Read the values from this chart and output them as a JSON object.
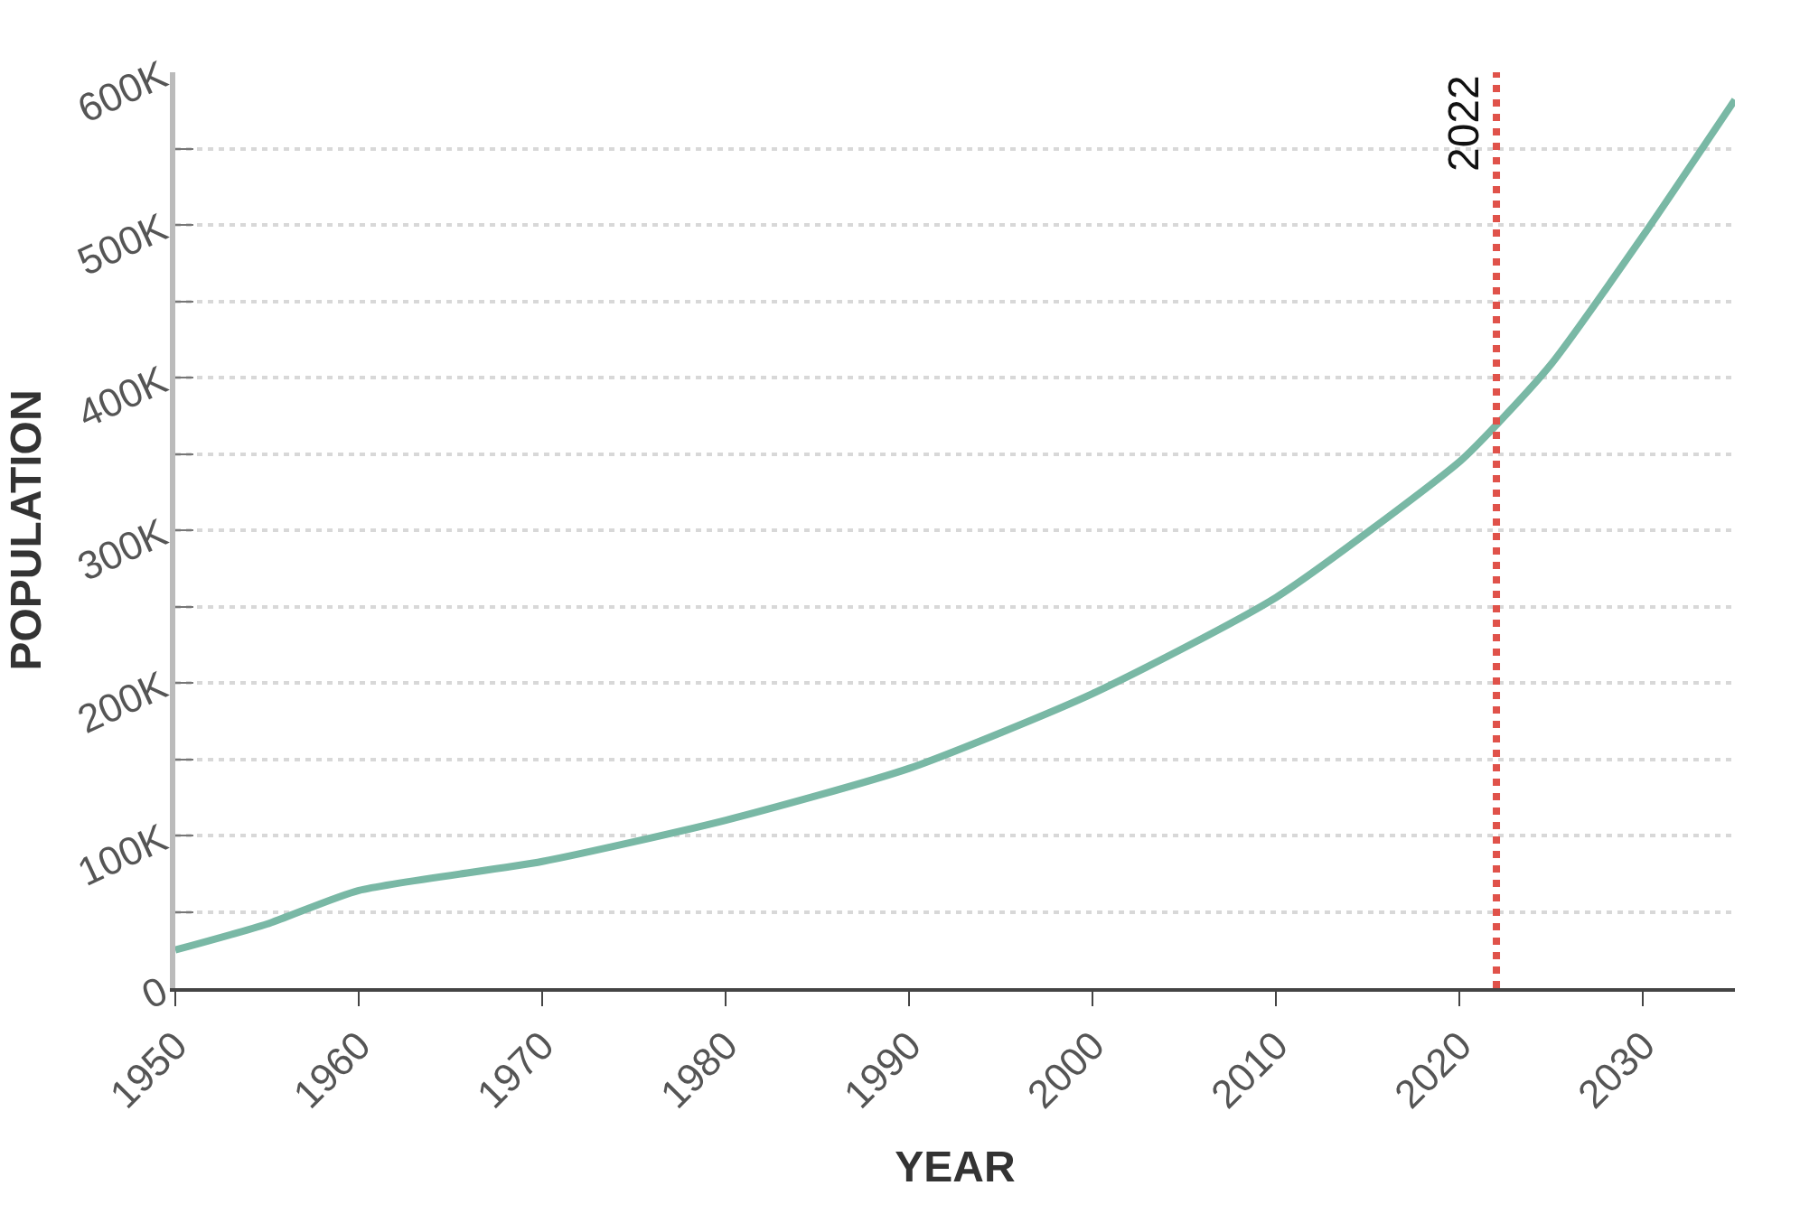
{
  "chart_data": {
    "type": "line",
    "xlabel": "YEAR",
    "ylabel": "POPULATION",
    "x": [
      1950,
      1955,
      1960,
      1970,
      1980,
      1990,
      2000,
      2010,
      2020,
      2022,
      2025,
      2030,
      2035
    ],
    "series": [
      {
        "color": "#79b8a5",
        "values": [
          25000,
          42000,
          64000,
          83000,
          110000,
          144000,
          193000,
          256000,
          345000,
          369000,
          409000,
          493000,
          582000
        ]
      }
    ],
    "xlim": [
      1950,
      2035
    ],
    "xticks": [
      1950,
      1960,
      1970,
      1980,
      1990,
      2000,
      2010,
      2020,
      2030
    ],
    "ylim": [
      0,
      600000
    ],
    "yticks": [
      {
        "value": 0,
        "label": "0"
      },
      {
        "value": 50000,
        "label": null
      },
      {
        "value": 100000,
        "label": "100K"
      },
      {
        "value": 150000,
        "label": null
      },
      {
        "value": 200000,
        "label": "200K"
      },
      {
        "value": 250000,
        "label": null
      },
      {
        "value": 300000,
        "label": "300K"
      },
      {
        "value": 350000,
        "label": null
      },
      {
        "value": 400000,
        "label": "400K"
      },
      {
        "value": 450000,
        "label": null
      },
      {
        "value": 500000,
        "label": "500K"
      },
      {
        "value": 550000,
        "label": null
      },
      {
        "value": 600000,
        "label": "600K"
      }
    ],
    "ref_lines": [
      {
        "axis": "x",
        "value": 2022,
        "label": "2022",
        "color": "#e0524a",
        "line_style": "dotted"
      }
    ],
    "grid": "y",
    "marker": "none",
    "line_style": "solid"
  }
}
